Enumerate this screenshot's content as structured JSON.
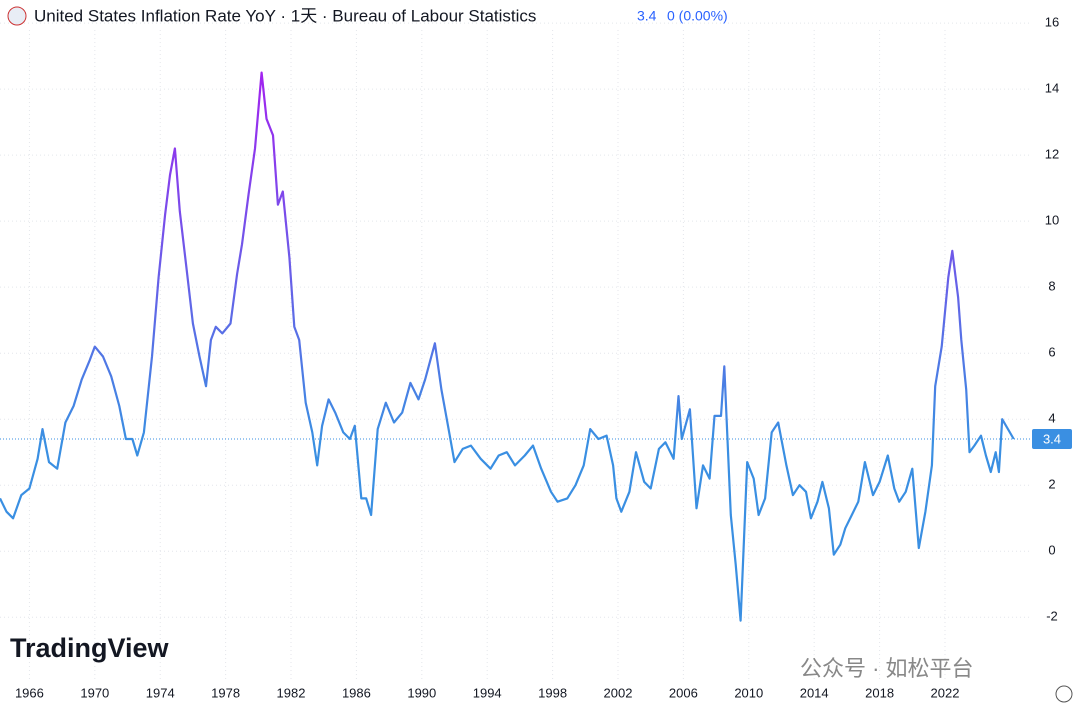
{
  "chart_data": {
    "type": "line",
    "title": "United States Inflation Rate YoY · 1天 · Bureau of Labour Statistics",
    "last_text": "3.4",
    "change_text": "0 (0.00%)",
    "watermark": "TradingView",
    "credit": "公众号 · 如松平台",
    "x": [
      1964.2,
      1964.6,
      1965.0,
      1965.5,
      1966.0,
      1966.5,
      1966.8,
      1967.2,
      1967.7,
      1968.2,
      1968.7,
      1969.2,
      1969.7,
      1970.0,
      1970.5,
      1971.0,
      1971.5,
      1971.9,
      1972.3,
      1972.6,
      1973.0,
      1973.5,
      1973.9,
      1974.3,
      1974.6,
      1974.9,
      1975.2,
      1975.6,
      1976.0,
      1976.4,
      1976.8,
      1977.1,
      1977.4,
      1977.8,
      1978.3,
      1978.7,
      1979.0,
      1979.4,
      1979.8,
      1980.2,
      1980.5,
      1980.9,
      1981.2,
      1981.5,
      1981.9,
      1982.2,
      1982.5,
      1982.9,
      1983.3,
      1983.6,
      1983.9,
      1984.3,
      1984.7,
      1985.2,
      1985.6,
      1985.9,
      1986.3,
      1986.6,
      1986.9,
      1987.3,
      1987.8,
      1988.3,
      1988.8,
      1989.3,
      1989.8,
      1990.2,
      1990.8,
      1991.2,
      1991.6,
      1992.0,
      1992.5,
      1993.0,
      1993.6,
      1994.2,
      1994.7,
      1995.2,
      1995.7,
      1996.3,
      1996.8,
      1997.3,
      1997.9,
      1998.3,
      1998.9,
      1999.4,
      1999.9,
      2000.3,
      2000.8,
      2001.3,
      2001.7,
      2001.9,
      2002.2,
      2002.7,
      2003.1,
      2003.6,
      2004.0,
      2004.5,
      2004.9,
      2005.4,
      2005.7,
      2005.9,
      2006.4,
      2006.8,
      2007.2,
      2007.6,
      2007.9,
      2008.3,
      2008.5,
      2008.9,
      2009.2,
      2009.5,
      2009.9,
      2010.3,
      2010.6,
      2011.0,
      2011.4,
      2011.8,
      2012.3,
      2012.7,
      2013.1,
      2013.5,
      2013.8,
      2014.2,
      2014.5,
      2014.9,
      2015.2,
      2015.6,
      2015.9,
      2016.3,
      2016.7,
      2017.1,
      2017.6,
      2018.0,
      2018.5,
      2018.9,
      2019.2,
      2019.6,
      2020.0,
      2020.4,
      2020.8,
      2021.2,
      2021.4,
      2021.8,
      2022.2,
      2022.45,
      2022.8,
      2023.0,
      2023.3,
      2023.5,
      2023.8,
      2024.2,
      2024.5,
      2024.8,
      2025.1,
      2025.3,
      2025.5,
      2026.2
    ],
    "series": [
      {
        "name": "United States Inflation Rate YoY",
        "colors": [
          "#a51ff0",
          "#3a8fe2"
        ],
        "values": [
          1.6,
          1.2,
          1.0,
          1.7,
          1.9,
          2.8,
          3.7,
          2.7,
          2.5,
          3.9,
          4.4,
          5.2,
          5.8,
          6.2,
          5.9,
          5.3,
          4.4,
          3.4,
          3.4,
          2.9,
          3.6,
          5.9,
          8.3,
          10.2,
          11.4,
          12.2,
          10.3,
          8.6,
          6.9,
          5.9,
          5.0,
          6.4,
          6.8,
          6.6,
          6.9,
          8.4,
          9.3,
          10.8,
          12.2,
          14.5,
          13.1,
          12.6,
          10.5,
          10.9,
          8.9,
          6.8,
          6.4,
          4.5,
          3.6,
          2.6,
          3.8,
          4.6,
          4.2,
          3.6,
          3.4,
          3.8,
          1.6,
          1.6,
          1.1,
          3.7,
          4.5,
          3.9,
          4.2,
          5.1,
          4.6,
          5.2,
          6.3,
          4.9,
          3.8,
          2.7,
          3.1,
          3.2,
          2.8,
          2.5,
          2.9,
          3.0,
          2.6,
          2.9,
          3.2,
          2.5,
          1.8,
          1.5,
          1.6,
          2.0,
          2.6,
          3.7,
          3.4,
          3.5,
          2.6,
          1.6,
          1.2,
          1.8,
          3.0,
          2.1,
          1.9,
          3.1,
          3.3,
          2.8,
          4.7,
          3.4,
          4.3,
          1.3,
          2.6,
          2.2,
          4.1,
          4.1,
          5.6,
          1.1,
          -0.4,
          -2.1,
          2.7,
          2.2,
          1.1,
          1.6,
          3.6,
          3.9,
          2.6,
          1.7,
          2.0,
          1.8,
          1.0,
          1.5,
          2.1,
          1.3,
          -0.1,
          0.2,
          0.7,
          1.1,
          1.5,
          2.7,
          1.7,
          2.1,
          2.9,
          1.9,
          1.5,
          1.8,
          2.5,
          0.1,
          1.2,
          2.6,
          5.0,
          6.2,
          8.3,
          9.1,
          7.7,
          6.4,
          4.9,
          3.0,
          3.2,
          3.5,
          2.9,
          2.4,
          3.0,
          2.4,
          4.0,
          3.4
        ]
      }
    ],
    "xlim": [
      1964.2,
      2027.2
    ],
    "xticks": [
      1966,
      1970,
      1974,
      1978,
      1982,
      1986,
      1990,
      1994,
      1998,
      2002,
      2006,
      2010,
      2014,
      2018,
      2022
    ],
    "ylim": [
      -3.9,
      16.7
    ],
    "yticks": [
      -2,
      0,
      2,
      4,
      6,
      8,
      10,
      12,
      14,
      16
    ],
    "grid": true
  }
}
